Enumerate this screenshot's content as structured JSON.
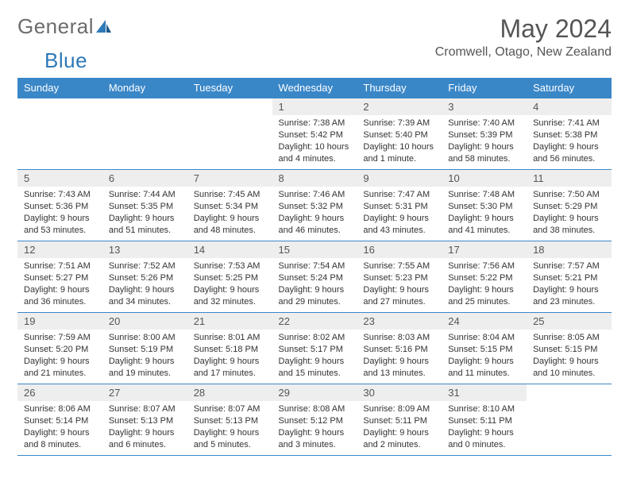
{
  "logo": {
    "part1": "General",
    "part2": "Blue"
  },
  "title": {
    "month": "May 2024",
    "location": "Cromwell, Otago, New Zealand"
  },
  "colors": {
    "header_bg": "#3a87c8",
    "header_text": "#ffffff",
    "daynum_bg": "#eeeeee",
    "border": "#3a87c8",
    "logo_gray": "#6c6c6c",
    "logo_blue": "#2e79b8"
  },
  "weekdays": [
    "Sunday",
    "Monday",
    "Tuesday",
    "Wednesday",
    "Thursday",
    "Friday",
    "Saturday"
  ],
  "weeks": [
    [
      null,
      null,
      null,
      {
        "n": "1",
        "sr": "Sunrise: 7:38 AM",
        "ss": "Sunset: 5:42 PM",
        "dl1": "Daylight: 10 hours",
        "dl2": "and 4 minutes."
      },
      {
        "n": "2",
        "sr": "Sunrise: 7:39 AM",
        "ss": "Sunset: 5:40 PM",
        "dl1": "Daylight: 10 hours",
        "dl2": "and 1 minute."
      },
      {
        "n": "3",
        "sr": "Sunrise: 7:40 AM",
        "ss": "Sunset: 5:39 PM",
        "dl1": "Daylight: 9 hours",
        "dl2": "and 58 minutes."
      },
      {
        "n": "4",
        "sr": "Sunrise: 7:41 AM",
        "ss": "Sunset: 5:38 PM",
        "dl1": "Daylight: 9 hours",
        "dl2": "and 56 minutes."
      }
    ],
    [
      {
        "n": "5",
        "sr": "Sunrise: 7:43 AM",
        "ss": "Sunset: 5:36 PM",
        "dl1": "Daylight: 9 hours",
        "dl2": "and 53 minutes."
      },
      {
        "n": "6",
        "sr": "Sunrise: 7:44 AM",
        "ss": "Sunset: 5:35 PM",
        "dl1": "Daylight: 9 hours",
        "dl2": "and 51 minutes."
      },
      {
        "n": "7",
        "sr": "Sunrise: 7:45 AM",
        "ss": "Sunset: 5:34 PM",
        "dl1": "Daylight: 9 hours",
        "dl2": "and 48 minutes."
      },
      {
        "n": "8",
        "sr": "Sunrise: 7:46 AM",
        "ss": "Sunset: 5:32 PM",
        "dl1": "Daylight: 9 hours",
        "dl2": "and 46 minutes."
      },
      {
        "n": "9",
        "sr": "Sunrise: 7:47 AM",
        "ss": "Sunset: 5:31 PM",
        "dl1": "Daylight: 9 hours",
        "dl2": "and 43 minutes."
      },
      {
        "n": "10",
        "sr": "Sunrise: 7:48 AM",
        "ss": "Sunset: 5:30 PM",
        "dl1": "Daylight: 9 hours",
        "dl2": "and 41 minutes."
      },
      {
        "n": "11",
        "sr": "Sunrise: 7:50 AM",
        "ss": "Sunset: 5:29 PM",
        "dl1": "Daylight: 9 hours",
        "dl2": "and 38 minutes."
      }
    ],
    [
      {
        "n": "12",
        "sr": "Sunrise: 7:51 AM",
        "ss": "Sunset: 5:27 PM",
        "dl1": "Daylight: 9 hours",
        "dl2": "and 36 minutes."
      },
      {
        "n": "13",
        "sr": "Sunrise: 7:52 AM",
        "ss": "Sunset: 5:26 PM",
        "dl1": "Daylight: 9 hours",
        "dl2": "and 34 minutes."
      },
      {
        "n": "14",
        "sr": "Sunrise: 7:53 AM",
        "ss": "Sunset: 5:25 PM",
        "dl1": "Daylight: 9 hours",
        "dl2": "and 32 minutes."
      },
      {
        "n": "15",
        "sr": "Sunrise: 7:54 AM",
        "ss": "Sunset: 5:24 PM",
        "dl1": "Daylight: 9 hours",
        "dl2": "and 29 minutes."
      },
      {
        "n": "16",
        "sr": "Sunrise: 7:55 AM",
        "ss": "Sunset: 5:23 PM",
        "dl1": "Daylight: 9 hours",
        "dl2": "and 27 minutes."
      },
      {
        "n": "17",
        "sr": "Sunrise: 7:56 AM",
        "ss": "Sunset: 5:22 PM",
        "dl1": "Daylight: 9 hours",
        "dl2": "and 25 minutes."
      },
      {
        "n": "18",
        "sr": "Sunrise: 7:57 AM",
        "ss": "Sunset: 5:21 PM",
        "dl1": "Daylight: 9 hours",
        "dl2": "and 23 minutes."
      }
    ],
    [
      {
        "n": "19",
        "sr": "Sunrise: 7:59 AM",
        "ss": "Sunset: 5:20 PM",
        "dl1": "Daylight: 9 hours",
        "dl2": "and 21 minutes."
      },
      {
        "n": "20",
        "sr": "Sunrise: 8:00 AM",
        "ss": "Sunset: 5:19 PM",
        "dl1": "Daylight: 9 hours",
        "dl2": "and 19 minutes."
      },
      {
        "n": "21",
        "sr": "Sunrise: 8:01 AM",
        "ss": "Sunset: 5:18 PM",
        "dl1": "Daylight: 9 hours",
        "dl2": "and 17 minutes."
      },
      {
        "n": "22",
        "sr": "Sunrise: 8:02 AM",
        "ss": "Sunset: 5:17 PM",
        "dl1": "Daylight: 9 hours",
        "dl2": "and 15 minutes."
      },
      {
        "n": "23",
        "sr": "Sunrise: 8:03 AM",
        "ss": "Sunset: 5:16 PM",
        "dl1": "Daylight: 9 hours",
        "dl2": "and 13 minutes."
      },
      {
        "n": "24",
        "sr": "Sunrise: 8:04 AM",
        "ss": "Sunset: 5:15 PM",
        "dl1": "Daylight: 9 hours",
        "dl2": "and 11 minutes."
      },
      {
        "n": "25",
        "sr": "Sunrise: 8:05 AM",
        "ss": "Sunset: 5:15 PM",
        "dl1": "Daylight: 9 hours",
        "dl2": "and 10 minutes."
      }
    ],
    [
      {
        "n": "26",
        "sr": "Sunrise: 8:06 AM",
        "ss": "Sunset: 5:14 PM",
        "dl1": "Daylight: 9 hours",
        "dl2": "and 8 minutes."
      },
      {
        "n": "27",
        "sr": "Sunrise: 8:07 AM",
        "ss": "Sunset: 5:13 PM",
        "dl1": "Daylight: 9 hours",
        "dl2": "and 6 minutes."
      },
      {
        "n": "28",
        "sr": "Sunrise: 8:07 AM",
        "ss": "Sunset: 5:13 PM",
        "dl1": "Daylight: 9 hours",
        "dl2": "and 5 minutes."
      },
      {
        "n": "29",
        "sr": "Sunrise: 8:08 AM",
        "ss": "Sunset: 5:12 PM",
        "dl1": "Daylight: 9 hours",
        "dl2": "and 3 minutes."
      },
      {
        "n": "30",
        "sr": "Sunrise: 8:09 AM",
        "ss": "Sunset: 5:11 PM",
        "dl1": "Daylight: 9 hours",
        "dl2": "and 2 minutes."
      },
      {
        "n": "31",
        "sr": "Sunrise: 8:10 AM",
        "ss": "Sunset: 5:11 PM",
        "dl1": "Daylight: 9 hours",
        "dl2": "and 0 minutes."
      },
      null
    ]
  ]
}
